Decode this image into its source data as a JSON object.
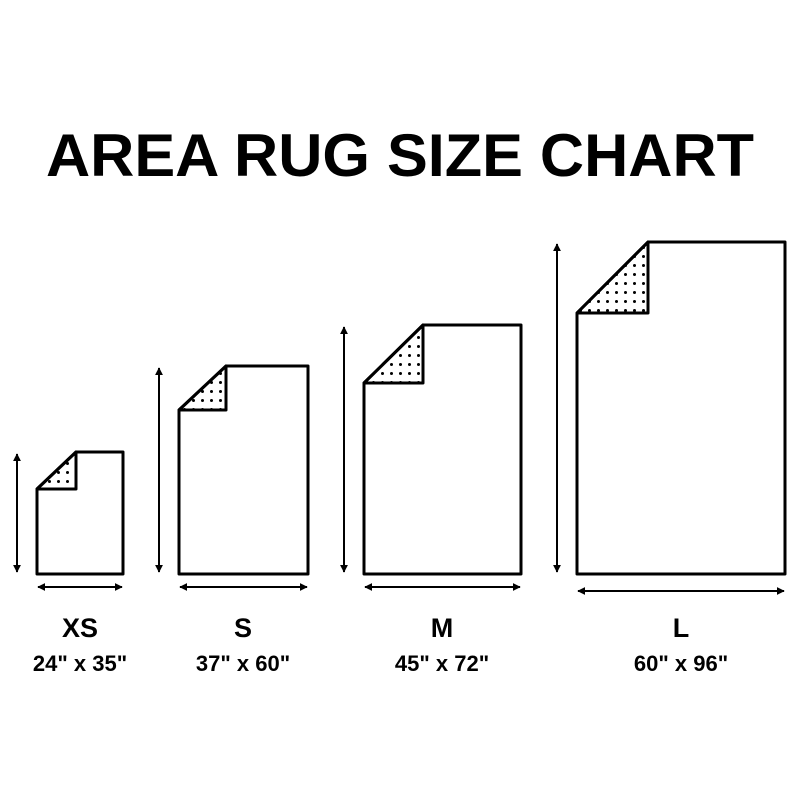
{
  "title": "AREA RUG SIZE CHART",
  "colors": {
    "line": "#000000",
    "background": "#ffffff"
  },
  "rugs": [
    {
      "size": "XS",
      "dimensions": "24\" x 35\"",
      "width_in": 24,
      "length_in": 35
    },
    {
      "size": "S",
      "dimensions": "37\" x 60\"",
      "width_in": 37,
      "length_in": 60
    },
    {
      "size": "M",
      "dimensions": "45\" x 72\"",
      "width_in": 45,
      "length_in": 72
    },
    {
      "size": "L",
      "dimensions": "60\" x 96\"",
      "width_in": 60,
      "length_in": 96
    }
  ]
}
